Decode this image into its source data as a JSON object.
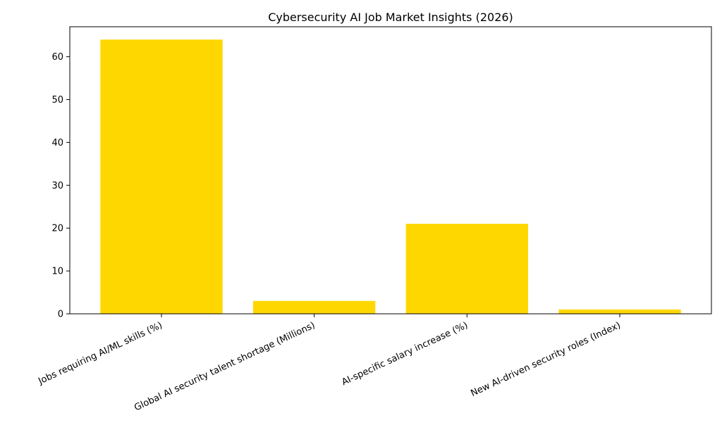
{
  "chart_data": {
    "type": "bar",
    "title": "Cybersecurity AI Job Market Insights (2026)",
    "xlabel": "",
    "ylabel": "",
    "categories": [
      "Jobs requiring AI/ML skills (%)",
      "Global AI security talent shortage (Millions)",
      "AI-specific salary increase (%)",
      "New AI-driven security roles (Index)"
    ],
    "values": [
      64,
      3,
      21,
      1
    ],
    "ylim": [
      0,
      67
    ],
    "yticks": [
      0,
      10,
      20,
      30,
      40,
      50,
      60
    ],
    "bar_color": "#ffd700",
    "grid": false,
    "legend": "none"
  }
}
